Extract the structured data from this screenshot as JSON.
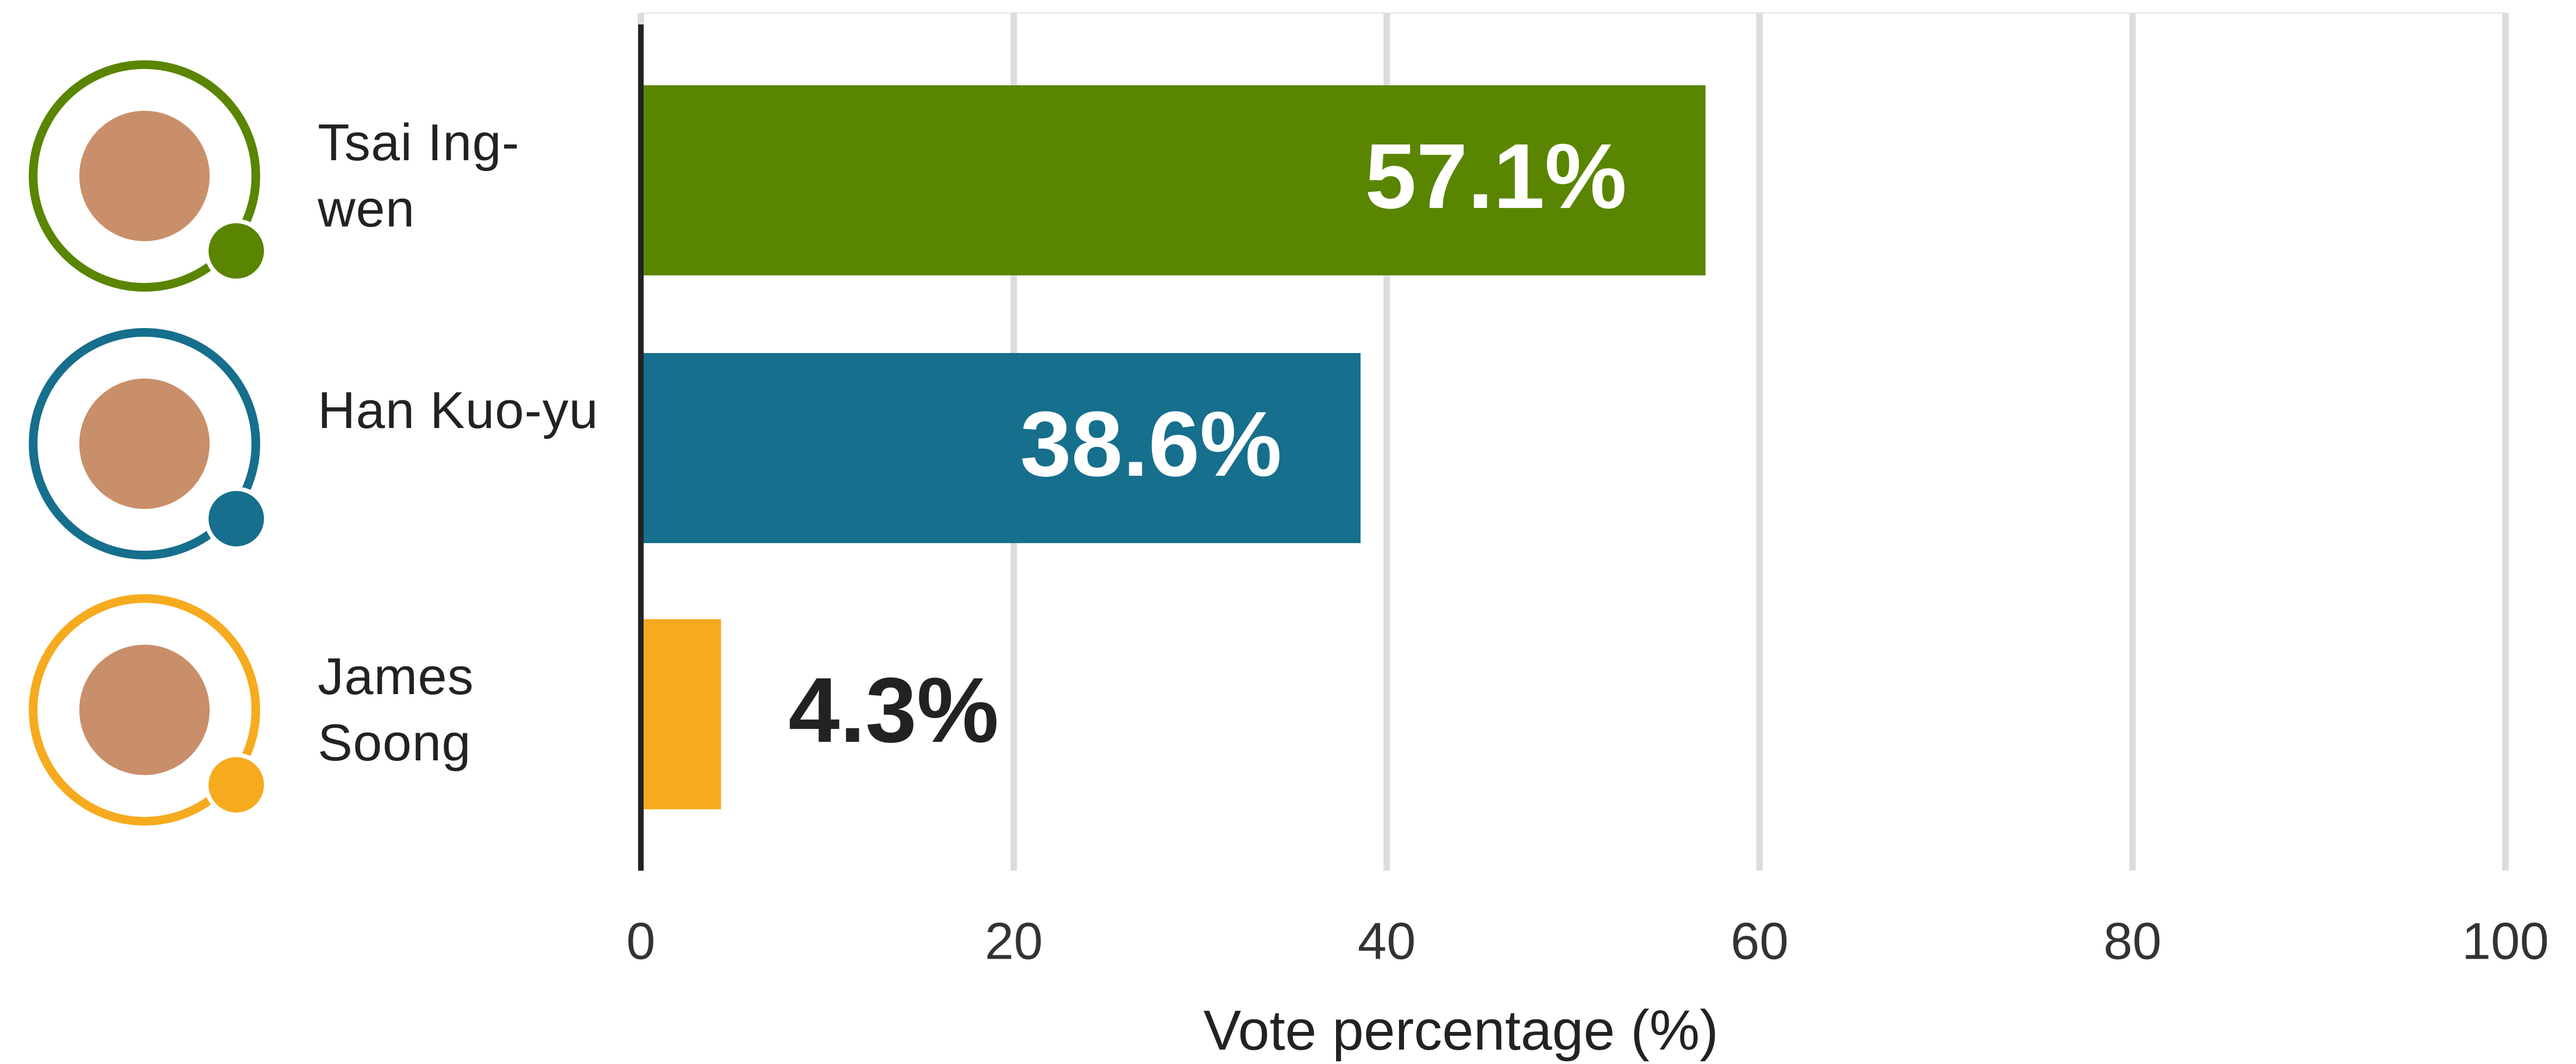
{
  "chart_data": {
    "type": "bar",
    "orientation": "horizontal",
    "categories": [
      "Tsai Ing-wen",
      "Han Kuo-yu",
      "James Soong"
    ],
    "values": [
      57.1,
      38.6,
      4.3
    ],
    "value_labels": [
      "57.1%",
      "38.6%",
      "4.3%"
    ],
    "colors": [
      "#5a8500",
      "#166f8c",
      "#f6ab1f"
    ],
    "xlim": [
      0,
      100
    ],
    "xticks": [
      0,
      20,
      40,
      60,
      80,
      100
    ],
    "xlabel": "Vote percentage (%)",
    "grid": true
  }
}
